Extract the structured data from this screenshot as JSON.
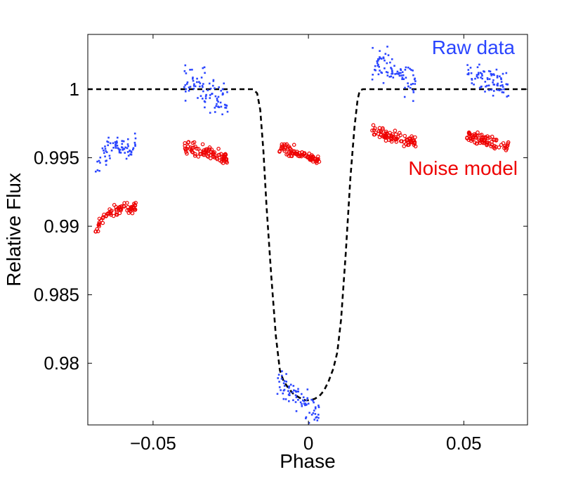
{
  "chart_data": {
    "type": "scatter",
    "title": "",
    "xlabel": "Phase",
    "ylabel": "Relative Flux",
    "xlim": [
      -0.071,
      0.0705
    ],
    "ylim": [
      0.9755,
      1.004
    ],
    "grid": false,
    "x_ticks": [
      -0.05,
      0,
      0.05
    ],
    "x_tick_labels": [
      "−0.05",
      "0",
      "0.05"
    ],
    "y_ticks": [
      0.98,
      0.985,
      0.99,
      0.995,
      1.0
    ],
    "y_tick_labels": [
      "0.98",
      "0.985",
      "0.99",
      "0.995",
      "1"
    ],
    "annotations": [
      {
        "text": "Raw data",
        "color": "#2a45ff",
        "position": "top-right"
      },
      {
        "text": "Noise model",
        "color": "#ee0000",
        "position": "right"
      }
    ],
    "series": [
      {
        "name": "Raw data",
        "style": "dots",
        "color": "#2a45ff",
        "segments": [
          {
            "x_start": -0.0685,
            "x_end": -0.0555,
            "start": 0.9936,
            "plateau": 0.9958,
            "rise": 0.002,
            "drift": 5e-05,
            "noise": 0.0004,
            "n": 75
          },
          {
            "x_start": -0.04,
            "x_end": -0.026,
            "start": 1.0007,
            "plateau": 1.0007,
            "rise": 0.004,
            "drift": -0.0016,
            "noise": 0.0007,
            "n": 85
          },
          {
            "x_start": -0.01,
            "x_end": -0.0,
            "start": 0.9786,
            "plateau": 0.9786,
            "rise": 0.003,
            "drift": -0.0016,
            "noise": 0.0005,
            "n": 60
          },
          {
            "x_start": 0.0,
            "x_end": 0.0035,
            "start": 0.9768,
            "plateau": 0.9768,
            "rise": 0.003,
            "drift": -0.0003,
            "noise": 0.0005,
            "n": 20
          },
          {
            "x_start": 0.0205,
            "x_end": 0.0345,
            "start": 1.002,
            "plateau": 1.002,
            "rise": 0.004,
            "drift": -0.0014,
            "noise": 0.0006,
            "n": 85
          },
          {
            "x_start": 0.051,
            "x_end": 0.0645,
            "start": 1.0013,
            "plateau": 1.0013,
            "rise": 0.004,
            "drift": -0.0011,
            "noise": 0.0005,
            "n": 80
          }
        ]
      },
      {
        "name": "Noise model",
        "style": "circles",
        "color": "#ee0000",
        "segments": [
          {
            "x_start": -0.0685,
            "x_end": -0.0555,
            "start": 0.9895,
            "plateau": 0.9913,
            "rise": 0.003,
            "drift": 0.0001,
            "noise": 0.0002,
            "n": 70
          },
          {
            "x_start": -0.04,
            "x_end": -0.026,
            "start": 0.9957,
            "plateau": 0.9957,
            "rise": 0.004,
            "drift": -0.0008,
            "noise": 0.00025,
            "n": 85
          },
          {
            "x_start": -0.01,
            "x_end": 0.0035,
            "start": 0.9958,
            "plateau": 0.9958,
            "rise": 0.004,
            "drift": -0.0009,
            "noise": 0.0002,
            "n": 80
          },
          {
            "x_start": 0.0205,
            "x_end": 0.0345,
            "start": 0.9969,
            "plateau": 0.9969,
            "rise": 0.004,
            "drift": -0.0008,
            "noise": 0.0002,
            "n": 85
          },
          {
            "x_start": 0.051,
            "x_end": 0.0645,
            "start": 0.9966,
            "plateau": 0.9966,
            "rise": 0.004,
            "drift": -0.0008,
            "noise": 0.0002,
            "n": 80
          }
        ]
      }
    ],
    "model_curve": {
      "name": "Transit model",
      "style": "dashed",
      "color": "#000000",
      "x": [
        -0.071,
        -0.0178,
        -0.0165,
        -0.0155,
        -0.0145,
        -0.0135,
        -0.012,
        -0.0105,
        -0.0092,
        -0.008,
        -0.0065,
        -0.005,
        -0.003,
        -0.001,
        0.0005,
        0.002,
        0.0035,
        0.005,
        0.0065,
        0.008,
        0.0093,
        0.0105,
        0.012,
        0.0135,
        0.0148,
        0.0158,
        0.0165,
        0.0175,
        0.0705
      ],
      "y": [
        1.0,
        1.0,
        0.9997,
        0.9985,
        0.9955,
        0.9915,
        0.9865,
        0.982,
        0.9795,
        0.9787,
        0.9782,
        0.9778,
        0.9775,
        0.9773,
        0.9773,
        0.9774,
        0.9776,
        0.978,
        0.9787,
        0.9796,
        0.9808,
        0.9832,
        0.988,
        0.9935,
        0.9972,
        0.9992,
        0.9999,
        1.0,
        1.0
      ]
    }
  }
}
